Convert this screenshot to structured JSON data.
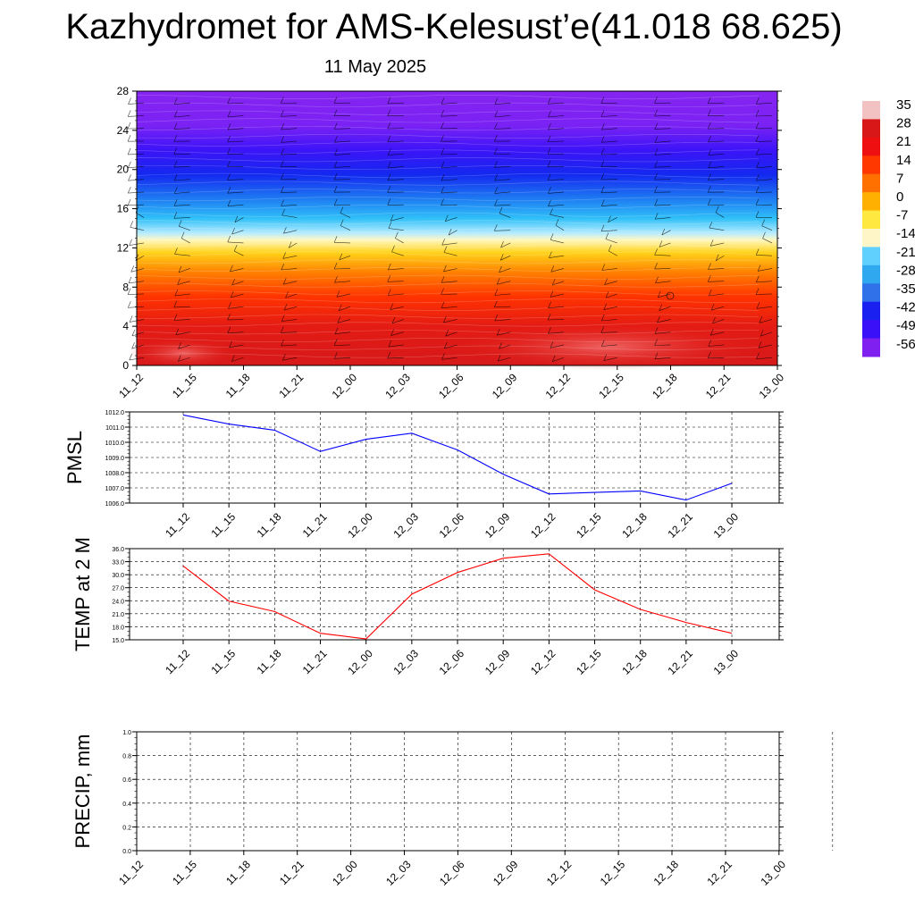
{
  "title": "Kazhydromet for AMS-Kelesust’e(41.018 68.625)",
  "subtitle": "11 May 2025",
  "chart_data": [
    {
      "type": "heatmap",
      "name": "height-time temperature section with wind barbs",
      "x_ticks": [
        "11_12",
        "11_15",
        "11_18",
        "11_21",
        "12_00",
        "12_03",
        "12_06",
        "12_09",
        "12_12",
        "12_15",
        "12_18",
        "12_21",
        "13_00"
      ],
      "y_ticks": [
        0,
        4,
        8,
        12,
        16,
        20,
        24,
        28
      ],
      "ylim": [
        0,
        28
      ],
      "colorbar": {
        "labels": [
          "35",
          "28",
          "21",
          "14",
          "7",
          "0",
          "-7",
          "-14",
          "-21",
          "-28",
          "-35",
          "-42",
          "-49",
          "-56"
        ],
        "colors": [
          "#f2c2c2",
          "#d81818",
          "#ee1010",
          "#ff3800",
          "#ff7000",
          "#ffb000",
          "#ffe840",
          "#fff6c8",
          "#60d0ff",
          "#30a8f0",
          "#3070e8",
          "#1a20f0",
          "#3a10f8",
          "#8020f0"
        ]
      },
      "gradient_stops": [
        {
          "level": 0,
          "color": "#d61a1a"
        },
        {
          "level": 4,
          "color": "#e41b14"
        },
        {
          "level": 7,
          "color": "#ff3300"
        },
        {
          "level": 9.5,
          "color": "#ff8000"
        },
        {
          "level": 11.5,
          "color": "#ffd21a"
        },
        {
          "level": 12.8,
          "color": "#fff8c0"
        },
        {
          "level": 13.5,
          "color": "#b8ecff"
        },
        {
          "level": 15,
          "color": "#30c0f8"
        },
        {
          "level": 17,
          "color": "#1e7cf2"
        },
        {
          "level": 19.5,
          "color": "#1428f0"
        },
        {
          "level": 22,
          "color": "#3c14f8"
        },
        {
          "level": 24.5,
          "color": "#7a22f4"
        },
        {
          "level": 28,
          "color": "#8624f0"
        }
      ]
    },
    {
      "type": "line",
      "ylabel": "PMSL",
      "x": [
        "11_12",
        "11_15",
        "11_18",
        "11_21",
        "12_00",
        "12_03",
        "12_06",
        "12_09",
        "12_12",
        "12_15",
        "12_18",
        "12_21",
        "13_00"
      ],
      "series": [
        {
          "values": [
            1011.8,
            1011.2,
            1010.8,
            1009.4,
            1010.2,
            1010.6,
            1009.5,
            1007.9,
            1006.6,
            1006.7,
            1006.8,
            1006.2,
            1007.3
          ],
          "color": "#0000ff"
        }
      ],
      "ylim": [
        1006.0,
        1012.0
      ],
      "y_ticks": [
        "1006.0",
        "1007.0",
        "1008.0",
        "1009.0",
        "1010.0",
        "1011.0",
        "1012.0"
      ]
    },
    {
      "type": "line",
      "ylabel": "TEMP at 2 M",
      "x": [
        "11_12",
        "11_15",
        "11_18",
        "11_21",
        "12_00",
        "12_03",
        "12_06",
        "12_09",
        "12_12",
        "12_15",
        "12_18",
        "12_21",
        "13_00"
      ],
      "series": [
        {
          "values": [
            32.0,
            23.9,
            21.5,
            16.5,
            15.2,
            25.5,
            30.5,
            33.8,
            34.8,
            26.5,
            22.0,
            19.0,
            16.5
          ],
          "color": "#ff0000"
        }
      ],
      "ylim": [
        15.0,
        36.0
      ],
      "y_ticks": [
        "15.0",
        "18.0",
        "21.0",
        "24.0",
        "27.0",
        "30.0",
        "33.0",
        "36.0"
      ]
    },
    {
      "type": "line",
      "ylabel": "PRECIP, mm",
      "x": [
        "11_12",
        "11_15",
        "11_18",
        "11_21",
        "12_00",
        "12_03",
        "12_06",
        "12_09",
        "12_12",
        "12_15",
        "12_18",
        "12_21",
        "13_00"
      ],
      "series": [
        {
          "values": [
            0,
            0,
            0,
            0,
            0,
            0,
            0,
            0,
            0,
            0,
            0,
            0,
            0
          ],
          "color": "#006400"
        }
      ],
      "ylim": [
        0.0,
        1.0
      ],
      "y_ticks": [
        "0.0",
        "0.2",
        "0.4",
        "0.6",
        "0.8",
        "1.0"
      ]
    }
  ]
}
